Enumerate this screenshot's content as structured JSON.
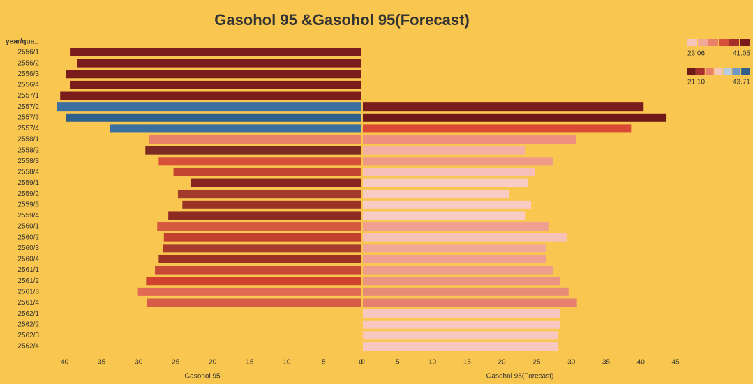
{
  "chart_data": {
    "type": "butterfly",
    "title": "Gasohol 95 &Gasohol 95(Forecast)",
    "category_header": "year/qua..",
    "categories": [
      "2556/1",
      "2556/2",
      "2556/3",
      "2556/4",
      "2557/1",
      "2557/2",
      "2557/3",
      "2557/4",
      "2558/1",
      "2558/2",
      "2558/3",
      "2558/4",
      "2559/1",
      "2559/2",
      "2559/3",
      "2559/4",
      "2560/1",
      "2560/2",
      "2560/3",
      "2560/4",
      "2561/1",
      "2561/2",
      "2561/3",
      "2561/4",
      "2562/1",
      "2562/2",
      "2562/3",
      "2562/4"
    ],
    "series": [
      {
        "name": "Gasohol 95",
        "values": [
          39.2,
          38.3,
          39.8,
          39.3,
          40.6,
          41.0,
          39.8,
          33.9,
          28.6,
          29.1,
          27.3,
          25.3,
          23.0,
          24.7,
          24.1,
          26.0,
          27.5,
          26.6,
          26.7,
          27.3,
          27.8,
          29.0,
          30.1,
          28.9,
          null,
          null,
          null,
          null
        ],
        "colors": [
          "#7a1c1c",
          "#7a1c1c",
          "#7a1c1c",
          "#7a1c1c",
          "#7a1c1c",
          "#3a6fa0",
          "#2f5f8a",
          "#3a6fa0",
          "#e8806a",
          "#7e2a22",
          "#d9503a",
          "#c24530",
          "#8a2420",
          "#a33a2c",
          "#9a3226",
          "#8e2a22",
          "#d45a40",
          "#c4402e",
          "#a83a2c",
          "#9a3024",
          "#c84a36",
          "#d0422e",
          "#e06a55",
          "#d85a48",
          null,
          null,
          null,
          null
        ]
      },
      {
        "name": "Gasohol 95(Forecast)",
        "values": [
          null,
          null,
          null,
          null,
          null,
          40.4,
          43.7,
          38.6,
          30.7,
          23.4,
          27.4,
          24.8,
          23.8,
          21.1,
          24.2,
          23.4,
          26.7,
          29.3,
          26.4,
          26.4,
          27.4,
          28.4,
          29.6,
          30.8,
          28.4,
          28.4,
          28.1,
          28.1
        ],
        "colors": [
          null,
          null,
          null,
          null,
          null,
          "#7a1c1c",
          "#6e1818",
          "#d84a34",
          "#f0907e",
          "#f4b0a4",
          "#ee9a88",
          "#f6c0b8",
          "#f8ccc4",
          "#f8ccc4",
          "#f8ccc4",
          "#f8ccc4",
          "#f0a090",
          "#f6c2b8",
          "#f2a898",
          "#f0a090",
          "#ee9c8c",
          "#ec9484",
          "#e88a78",
          "#e88070",
          "#f8c8c0",
          "#f8c8c0",
          "#f8c8c0",
          "#f8c8c0"
        ]
      }
    ],
    "xlim": [
      0,
      41
    ],
    "xticks": [
      40,
      35,
      30,
      25,
      20,
      15,
      10,
      5,
      0
    ],
    "x2lim": [
      0,
      45.5
    ],
    "x2ticks": [
      0,
      5,
      10,
      15,
      20,
      25,
      30,
      35,
      40,
      45
    ],
    "legends": [
      {
        "range": [
          23.06,
          41.05
        ],
        "colors": [
          "#f6c6bc",
          "#f0a898",
          "#e8806a",
          "#d9503a",
          "#a8302a",
          "#7a1c1c"
        ]
      },
      {
        "range": [
          {
            "value": 21.1,
            "label": "21.10"
          },
          43.71
        ],
        "colors": [
          "#6e1818",
          "#a8302a",
          "#e8806a",
          "#f6c6bc",
          "#b8cce0",
          "#6f98c4",
          "#2f5f8a"
        ]
      }
    ]
  }
}
